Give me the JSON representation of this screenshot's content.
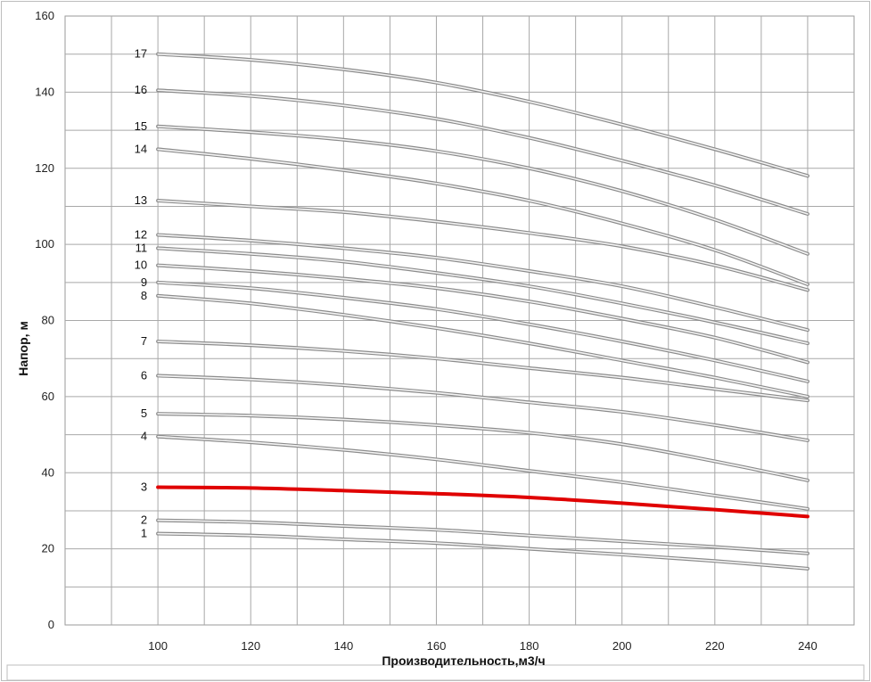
{
  "chart_data": {
    "type": "line",
    "title": "",
    "xlabel": "Производительность,м3/ч",
    "ylabel": "Напор, м",
    "xlim": [
      80,
      250
    ],
    "ylim": [
      0,
      160
    ],
    "x_ticks": [
      100,
      120,
      140,
      160,
      180,
      200,
      220,
      240
    ],
    "y_ticks": [
      0,
      20,
      40,
      60,
      80,
      100,
      120,
      140,
      160
    ],
    "grid": true,
    "legend": "none",
    "x": [
      100,
      120,
      140,
      160,
      180,
      200,
      220,
      240
    ],
    "series": [
      {
        "name": "1",
        "values": [
          24,
          23.5,
          22.5,
          21.5,
          20,
          18.5,
          16.8,
          14.8
        ],
        "color": "#b0b0b0"
      },
      {
        "name": "2",
        "values": [
          27.5,
          27,
          26,
          25,
          23.5,
          22,
          20.5,
          18.8
        ],
        "color": "#b0b0b0"
      },
      {
        "name": "3",
        "values": [
          36.2,
          36,
          35.3,
          34.5,
          33.5,
          32,
          30.3,
          28.5
        ],
        "color": "#e00000",
        "highlight": true
      },
      {
        "name": "4",
        "values": [
          49.5,
          48,
          46,
          43.5,
          40.5,
          37.5,
          34,
          30.5
        ],
        "color": "#b0b0b0"
      },
      {
        "name": "5",
        "values": [
          55.5,
          55,
          54,
          52.5,
          50.5,
          47.5,
          43,
          38
        ],
        "color": "#b0b0b0"
      },
      {
        "name": "6",
        "values": [
          65.5,
          64.5,
          63,
          61,
          58.5,
          56,
          52.5,
          48.5
        ],
        "color": "#b0b0b0"
      },
      {
        "name": "7",
        "values": [
          74.5,
          73.5,
          72,
          70,
          67.5,
          65,
          62,
          59
        ],
        "color": "#b0b0b0"
      },
      {
        "name": "8",
        "values": [
          86.5,
          84.5,
          81.5,
          78,
          74,
          69.5,
          65,
          60
        ],
        "color": "#b0b0b0"
      },
      {
        "name": "9",
        "values": [
          90,
          88.5,
          86,
          83,
          79,
          74.5,
          69.5,
          64
        ],
        "color": "#b0b0b0"
      },
      {
        "name": "10",
        "values": [
          94.5,
          93,
          91,
          88.5,
          85,
          80.5,
          75.5,
          69
        ],
        "color": "#b0b0b0"
      },
      {
        "name": "11",
        "values": [
          99,
          97.5,
          95.5,
          92.5,
          89,
          84.5,
          79.5,
          74
        ],
        "color": "#b0b0b0"
      },
      {
        "name": "12",
        "values": [
          102.5,
          101,
          99,
          96.5,
          93,
          89,
          83.5,
          77.5
        ],
        "color": "#b0b0b0"
      },
      {
        "name": "13",
        "values": [
          111.5,
          110,
          108.5,
          106,
          103,
          99.5,
          94.5,
          88
        ],
        "color": "#b0b0b0"
      },
      {
        "name": "14",
        "values": [
          125,
          122.5,
          119.5,
          116,
          111.5,
          105.5,
          98.5,
          89.5
        ],
        "color": "#b0b0b0"
      },
      {
        "name": "15",
        "values": [
          131,
          129.5,
          127.5,
          124.5,
          120,
          114,
          106.5,
          97.5
        ],
        "color": "#b0b0b0"
      },
      {
        "name": "16",
        "values": [
          140.5,
          139,
          136.5,
          133,
          128,
          122,
          115.5,
          108
        ],
        "color": "#b0b0b0"
      },
      {
        "name": "17",
        "values": [
          150,
          148.5,
          146,
          142.5,
          137.5,
          131.5,
          125,
          118
        ],
        "color": "#b0b0b0"
      }
    ]
  }
}
